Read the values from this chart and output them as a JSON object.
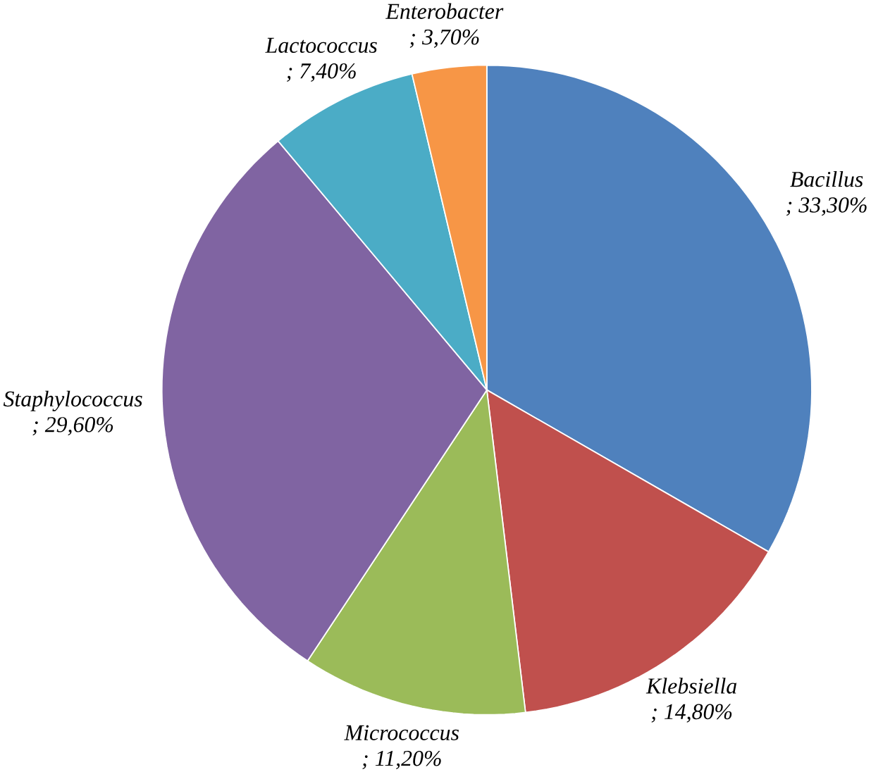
{
  "chart_data": {
    "type": "pie",
    "categories": [
      "Bacillus",
      "Klebsiella",
      "Micrococcus",
      "Staphylococcus",
      "Lactococcus",
      "Enterobacter"
    ],
    "values": [
      33.3,
      14.8,
      11.2,
      29.6,
      7.4,
      3.7
    ],
    "colors": [
      "#4f81bd",
      "#c0504d",
      "#9bbb59",
      "#8064a2",
      "#4bacc6",
      "#f79646"
    ],
    "value_labels": [
      "; 33,30%",
      "; 14,80%",
      "; 11,20%",
      "; 29,60%",
      "; 7,40%",
      "; 3,70%"
    ]
  }
}
